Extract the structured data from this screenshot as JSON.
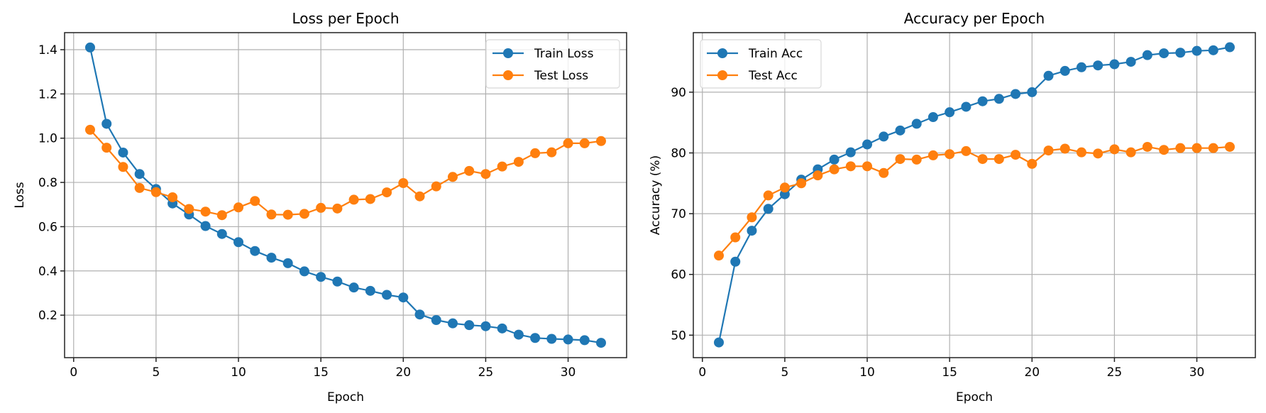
{
  "chart_data": [
    {
      "type": "line",
      "title": "Loss per Epoch",
      "xlabel": "Epoch",
      "ylabel": "Loss",
      "xlim": [
        -0.55,
        33.55
      ],
      "ylim": [
        0.008,
        1.477
      ],
      "xticks": [
        0,
        5,
        10,
        15,
        20,
        25,
        30
      ],
      "yticks": [
        0.2,
        0.4,
        0.6,
        0.8,
        1.0,
        1.2,
        1.4
      ],
      "ytick_labels": [
        "0.2",
        "0.4",
        "0.6",
        "0.8",
        "1.0",
        "1.2",
        "1.4"
      ],
      "grid": true,
      "legend": "top-right",
      "x": [
        1,
        2,
        3,
        4,
        5,
        6,
        7,
        8,
        9,
        10,
        11,
        12,
        13,
        14,
        15,
        16,
        17,
        18,
        19,
        20,
        21,
        22,
        23,
        24,
        25,
        26,
        27,
        28,
        29,
        30,
        31,
        32
      ],
      "series": [
        {
          "name": "Train Loss",
          "color": "#1f77b4",
          "values": [
            1.41,
            1.065,
            0.935,
            0.838,
            0.77,
            0.705,
            0.655,
            0.603,
            0.567,
            0.53,
            0.49,
            0.46,
            0.435,
            0.398,
            0.373,
            0.352,
            0.325,
            0.31,
            0.292,
            0.28,
            0.203,
            0.178,
            0.163,
            0.155,
            0.15,
            0.14,
            0.112,
            0.097,
            0.093,
            0.09,
            0.087,
            0.075
          ]
        },
        {
          "name": "Test Loss",
          "color": "#ff7f0e",
          "values": [
            1.038,
            0.957,
            0.87,
            0.775,
            0.756,
            0.733,
            0.68,
            0.668,
            0.652,
            0.687,
            0.716,
            0.655,
            0.654,
            0.658,
            0.685,
            0.682,
            0.722,
            0.725,
            0.755,
            0.797,
            0.737,
            0.782,
            0.825,
            0.852,
            0.838,
            0.872,
            0.893,
            0.932,
            0.936,
            0.977,
            0.977,
            0.987
          ]
        }
      ]
    },
    {
      "type": "line",
      "title": "Accuracy per Epoch",
      "xlabel": "Epoch",
      "ylabel": "Accuracy (%)",
      "xlim": [
        -0.55,
        33.55
      ],
      "ylim": [
        46.3,
        99.8
      ],
      "xticks": [
        0,
        5,
        10,
        15,
        20,
        25,
        30
      ],
      "yticks": [
        50,
        60,
        70,
        80,
        90
      ],
      "ytick_labels": [
        "50",
        "60",
        "70",
        "80",
        "90"
      ],
      "grid": true,
      "legend": "top-left",
      "x": [
        1,
        2,
        3,
        4,
        5,
        6,
        7,
        8,
        9,
        10,
        11,
        12,
        13,
        14,
        15,
        16,
        17,
        18,
        19,
        20,
        21,
        22,
        23,
        24,
        25,
        26,
        27,
        28,
        29,
        30,
        31,
        32
      ],
      "series": [
        {
          "name": "Train Acc",
          "color": "#1f77b4",
          "values": [
            48.8,
            62.1,
            67.2,
            70.8,
            73.2,
            75.6,
            77.3,
            78.9,
            80.1,
            81.4,
            82.7,
            83.7,
            84.8,
            85.9,
            86.7,
            87.6,
            88.5,
            88.9,
            89.7,
            90.0,
            92.7,
            93.5,
            94.1,
            94.4,
            94.6,
            95.0,
            96.1,
            96.4,
            96.5,
            96.8,
            96.9,
            97.4
          ]
        },
        {
          "name": "Test Acc",
          "color": "#ff7f0e",
          "values": [
            63.1,
            66.1,
            69.4,
            73.0,
            74.3,
            75.0,
            76.3,
            77.3,
            77.8,
            77.8,
            76.7,
            79.0,
            78.9,
            79.6,
            79.8,
            80.3,
            79.0,
            79.0,
            79.7,
            78.2,
            80.4,
            80.7,
            80.1,
            79.9,
            80.6,
            80.1,
            81.0,
            80.5,
            80.8,
            80.8,
            80.8,
            81.0
          ]
        }
      ]
    }
  ]
}
